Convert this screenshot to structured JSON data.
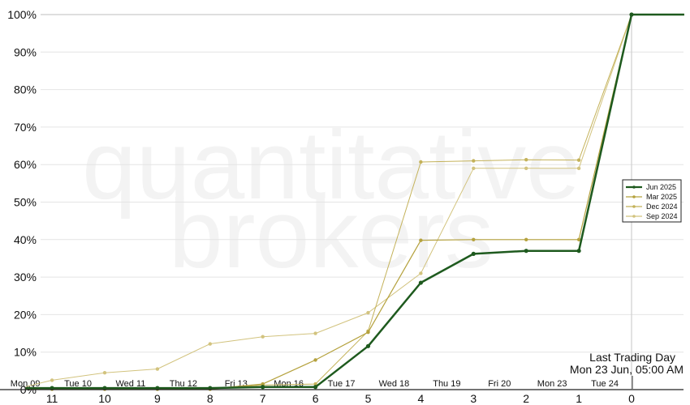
{
  "chart_data": {
    "type": "line",
    "watermark": [
      "quantitative",
      "brokers"
    ],
    "x_ticks": [
      11,
      10,
      9,
      8,
      7,
      6,
      5,
      4,
      3,
      2,
      1,
      0
    ],
    "day_labels": [
      "Mon 09",
      "Tue 10",
      "Wed 11",
      "Thu 12",
      "Fri 13",
      "Mon 16",
      "Tue 17",
      "Wed 18",
      "Thu 19",
      "Fri 20",
      "Mon 23",
      "Tue 24"
    ],
    "ylim": [
      0,
      100
    ],
    "y_ticks": [
      "0%",
      "10%",
      "20%",
      "30%",
      "40%",
      "50%",
      "60%",
      "70%",
      "80%",
      "90%",
      "100%"
    ],
    "annotation": [
      "Last Trading Day",
      "Mon 23 Jun, 05:00 AM"
    ],
    "legend_position": "right",
    "series": [
      {
        "name": "Jun 2025",
        "color": "#1e5a1e",
        "width": 2.5,
        "points": [
          [
            11.5,
            0.4
          ],
          [
            11,
            0.4
          ],
          [
            10,
            0.4
          ],
          [
            9,
            0.4
          ],
          [
            8,
            0.4
          ],
          [
            7,
            0.7
          ],
          [
            6,
            0.7
          ],
          [
            5,
            11.6
          ],
          [
            4,
            28.5
          ],
          [
            3,
            36.2
          ],
          [
            2,
            37
          ],
          [
            1,
            37
          ],
          [
            0,
            100
          ],
          [
            -1,
            100
          ]
        ]
      },
      {
        "name": "Mar 2025",
        "color": "#b5a23e",
        "width": 1.2,
        "points": [
          [
            11.5,
            0.2
          ],
          [
            11,
            0.2
          ],
          [
            10,
            0.2
          ],
          [
            9,
            0.2
          ],
          [
            8,
            0.2
          ],
          [
            7,
            1.5
          ],
          [
            6,
            7.9
          ],
          [
            5,
            15.3
          ],
          [
            4,
            39.8
          ],
          [
            3,
            40
          ],
          [
            2,
            40
          ],
          [
            1,
            40
          ],
          [
            0,
            100
          ],
          [
            -1,
            100
          ]
        ]
      },
      {
        "name": "Dec 2024",
        "color": "#c4b25a",
        "width": 1.0,
        "points": [
          [
            11.5,
            0.1
          ],
          [
            11,
            0.1
          ],
          [
            10,
            0.1
          ],
          [
            9,
            0.1
          ],
          [
            8,
            0.1
          ],
          [
            7,
            1.2
          ],
          [
            6,
            1.5
          ],
          [
            5,
            15.6
          ],
          [
            4,
            60.7
          ],
          [
            3,
            61
          ],
          [
            2,
            61.3
          ],
          [
            1,
            61.2
          ],
          [
            0,
            100
          ],
          [
            -1,
            100
          ]
        ]
      },
      {
        "name": "Sep 2024",
        "color": "#d2c37e",
        "width": 1.0,
        "points": [
          [
            11.5,
            0.8
          ],
          [
            11,
            2.5
          ],
          [
            10,
            4.5
          ],
          [
            9,
            5.5
          ],
          [
            8,
            12.2
          ],
          [
            7,
            14.1
          ],
          [
            6,
            15
          ],
          [
            5,
            20.5
          ],
          [
            4,
            31
          ],
          [
            3,
            59
          ],
          [
            2,
            59
          ],
          [
            1,
            59
          ],
          [
            0,
            100
          ],
          [
            -1,
            100
          ]
        ]
      }
    ]
  }
}
